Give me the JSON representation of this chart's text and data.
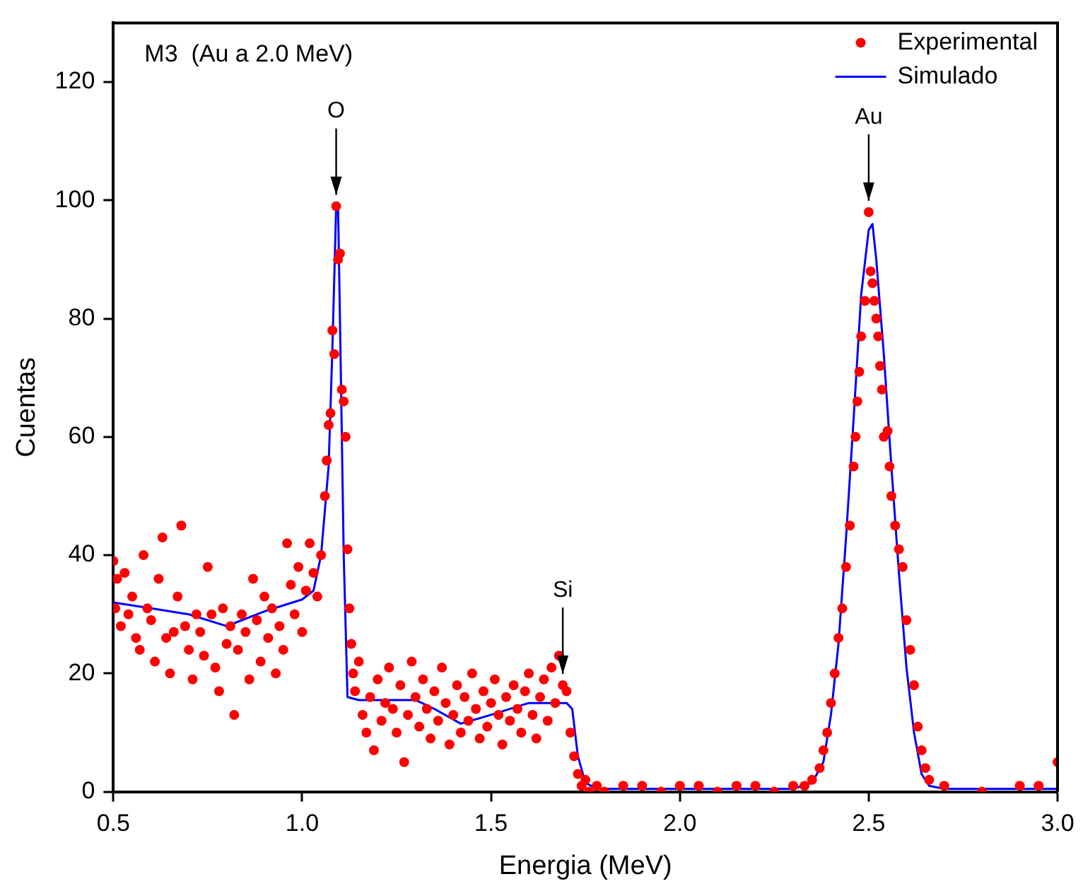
{
  "chart_data": {
    "type": "scatter",
    "xlabel": "Energia (MeV)",
    "ylabel": "Cuentas",
    "xlim": [
      0.5,
      3.0
    ],
    "ylim": [
      0,
      130
    ],
    "xticks": [
      0.5,
      {
        "value": 1,
        "label": "1.0"
      },
      {
        "value": 1.5,
        "label": "1.5"
      },
      {
        "value": 2,
        "label": "2.0"
      },
      {
        "value": 2.5,
        "label": "2.5"
      },
      {
        "value": 3,
        "label": "3.0"
      }
    ],
    "yticks": [
      0,
      20,
      40,
      60,
      80,
      100,
      120
    ],
    "grid": false,
    "legend": "top right",
    "annotations": [
      "M3  (Au a 2.0 MeV)",
      {
        "text": "O",
        "x": 1.09,
        "y": 99
      },
      {
        "text": "Si",
        "x": 1.69,
        "y": 18
      },
      {
        "text": "Au",
        "x": 2.5,
        "y": 98
      }
    ],
    "series": [
      {
        "name": "Experimental",
        "color": "#ff0000",
        "marker": "circle",
        "x": [
          0.5,
          0.505,
          0.51,
          0.52,
          0.53,
          0.54,
          0.55,
          0.56,
          0.57,
          0.58,
          0.59,
          0.6,
          0.61,
          0.62,
          0.63,
          0.64,
          0.65,
          0.66,
          0.67,
          0.68,
          0.69,
          0.7,
          0.71,
          0.72,
          0.73,
          0.74,
          0.75,
          0.76,
          0.77,
          0.78,
          0.79,
          0.8,
          0.81,
          0.82,
          0.83,
          0.84,
          0.85,
          0.86,
          0.87,
          0.88,
          0.89,
          0.9,
          0.91,
          0.92,
          0.93,
          0.94,
          0.95,
          0.96,
          0.97,
          0.98,
          0.99,
          1.0,
          1.01,
          1.02,
          1.03,
          1.04,
          1.05,
          1.06,
          1.065,
          1.07,
          1.075,
          1.08,
          1.085,
          1.09,
          1.095,
          1.1,
          1.105,
          1.11,
          1.115,
          1.12,
          1.125,
          1.13,
          1.135,
          1.14,
          1.15,
          1.16,
          1.17,
          1.18,
          1.19,
          1.2,
          1.21,
          1.22,
          1.23,
          1.24,
          1.25,
          1.26,
          1.27,
          1.28,
          1.29,
          1.3,
          1.31,
          1.32,
          1.33,
          1.34,
          1.35,
          1.36,
          1.37,
          1.38,
          1.39,
          1.4,
          1.41,
          1.42,
          1.43,
          1.44,
          1.45,
          1.46,
          1.47,
          1.48,
          1.49,
          1.5,
          1.51,
          1.52,
          1.53,
          1.54,
          1.55,
          1.56,
          1.57,
          1.58,
          1.59,
          1.6,
          1.61,
          1.62,
          1.63,
          1.64,
          1.65,
          1.66,
          1.67,
          1.68,
          1.69,
          1.7,
          1.71,
          1.72,
          1.73,
          1.74,
          1.75,
          1.76,
          1.78,
          1.8,
          1.85,
          1.9,
          1.95,
          2.0,
          2.05,
          2.1,
          2.15,
          2.2,
          2.25,
          2.3,
          2.33,
          2.35,
          2.37,
          2.38,
          2.39,
          2.4,
          2.41,
          2.42,
          2.43,
          2.44,
          2.45,
          2.46,
          2.465,
          2.47,
          2.475,
          2.48,
          2.49,
          2.5,
          2.505,
          2.51,
          2.515,
          2.52,
          2.525,
          2.53,
          2.535,
          2.54,
          2.55,
          2.555,
          2.56,
          2.57,
          2.58,
          2.59,
          2.6,
          2.61,
          2.62,
          2.63,
          2.64,
          2.65,
          2.66,
          2.7,
          2.8,
          2.9,
          2.95,
          3.0
        ],
        "values": [
          39,
          31,
          36,
          28,
          37,
          30,
          33,
          26,
          24,
          40,
          31,
          29,
          22,
          36,
          43,
          26,
          20,
          27,
          33,
          45,
          28,
          24,
          19,
          30,
          27,
          23,
          38,
          30,
          21,
          17,
          31,
          25,
          28,
          13,
          24,
          30,
          27,
          19,
          36,
          29,
          22,
          33,
          26,
          31,
          20,
          28,
          24,
          42,
          35,
          30,
          38,
          27,
          34,
          42,
          37,
          33,
          40,
          50,
          56,
          62,
          64,
          78,
          74,
          99,
          90,
          91,
          68,
          66,
          60,
          41,
          31,
          25,
          20,
          17,
          22,
          13,
          10,
          16,
          7,
          19,
          12,
          15,
          21,
          14,
          10,
          18,
          5,
          13,
          22,
          16,
          11,
          19,
          14,
          9,
          17,
          12,
          21,
          15,
          8,
          13,
          18,
          10,
          16,
          12,
          20,
          14,
          9,
          17,
          11,
          15,
          19,
          13,
          8,
          16,
          12,
          18,
          14,
          10,
          17,
          20,
          13,
          9,
          16,
          19,
          12,
          21,
          15,
          23,
          18,
          17,
          10,
          6,
          3,
          1,
          2,
          0,
          1,
          0,
          1,
          1,
          0,
          1,
          1,
          0,
          1,
          1,
          0,
          1,
          1,
          2,
          4,
          7,
          10,
          15,
          20,
          26,
          31,
          38,
          45,
          55,
          60,
          66,
          71,
          77,
          83,
          98,
          88,
          86,
          83,
          80,
          77,
          72,
          68,
          60,
          61,
          55,
          50,
          45,
          41,
          38,
          29,
          24,
          18,
          11,
          7,
          4,
          2,
          1,
          0,
          1,
          1,
          5
        ]
      },
      {
        "name": "Simulado",
        "type": "line",
        "color": "#0000ff",
        "marker": "none",
        "line_style": "solid",
        "x": [
          0.5,
          0.6,
          0.7,
          0.8,
          0.82,
          0.9,
          1.0,
          1.03,
          1.05,
          1.07,
          1.08,
          1.09,
          1.095,
          1.1,
          1.11,
          1.12,
          1.15,
          1.3,
          1.35,
          1.42,
          1.5,
          1.6,
          1.7,
          1.715,
          1.73,
          1.75,
          1.78,
          2.0,
          2.3,
          2.35,
          2.38,
          2.4,
          2.42,
          2.44,
          2.46,
          2.48,
          2.5,
          2.51,
          2.52,
          2.54,
          2.56,
          2.58,
          2.6,
          2.62,
          2.64,
          2.66,
          2.7,
          3.0
        ],
        "values": [
          32,
          31,
          30,
          28,
          28.5,
          30.5,
          32.5,
          34,
          40,
          55,
          75,
          99,
          99,
          80,
          40,
          16,
          15.5,
          15.5,
          14,
          11.5,
          13,
          15,
          15,
          14,
          6,
          1.5,
          0.5,
          0.5,
          0.5,
          1.5,
          5,
          13,
          25,
          43,
          63,
          84,
          95,
          96,
          90,
          74,
          55,
          37,
          21,
          10,
          3,
          1,
          0.5,
          0.5
        ]
      }
    ]
  }
}
